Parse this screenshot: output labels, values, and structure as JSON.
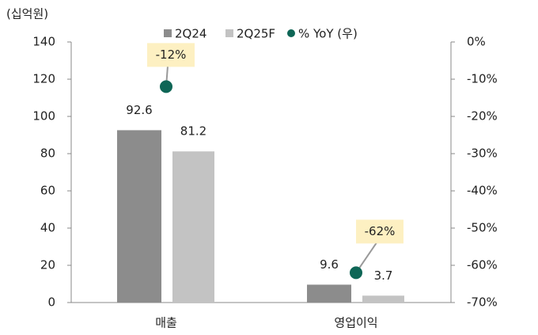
{
  "chart_data": {
    "type": "bar",
    "y_label": "(십억원)",
    "categories": [
      "매출",
      "영업이익"
    ],
    "series": [
      {
        "name": "2Q24",
        "color": "#8c8c8c",
        "values": [
          92.6,
          9.6
        ]
      },
      {
        "name": "2Q25F",
        "color": "#c3c3c3",
        "values": [
          81.2,
          3.7
        ]
      },
      {
        "name": "% YoY (우)",
        "color": "#0e6656",
        "type": "scatter",
        "axis": "y2",
        "values": [
          -12,
          -62
        ],
        "value_labels": [
          "-12%",
          "-62%"
        ]
      }
    ],
    "ylim": [
      0,
      140
    ],
    "yticks": [
      0,
      20,
      40,
      60,
      80,
      100,
      120,
      140
    ],
    "y2lim": [
      -70,
      0
    ],
    "y2ticks": [
      {
        "value": 0,
        "label": "0%"
      },
      {
        "value": -10,
        "label": "-10%"
      },
      {
        "value": -20,
        "label": "-20%"
      },
      {
        "value": -30,
        "label": "-30%"
      },
      {
        "value": -40,
        "label": "-40%"
      },
      {
        "value": -50,
        "label": "-50%"
      },
      {
        "value": -60,
        "label": "-60%"
      },
      {
        "value": -70,
        "label": "-70%"
      }
    ]
  }
}
